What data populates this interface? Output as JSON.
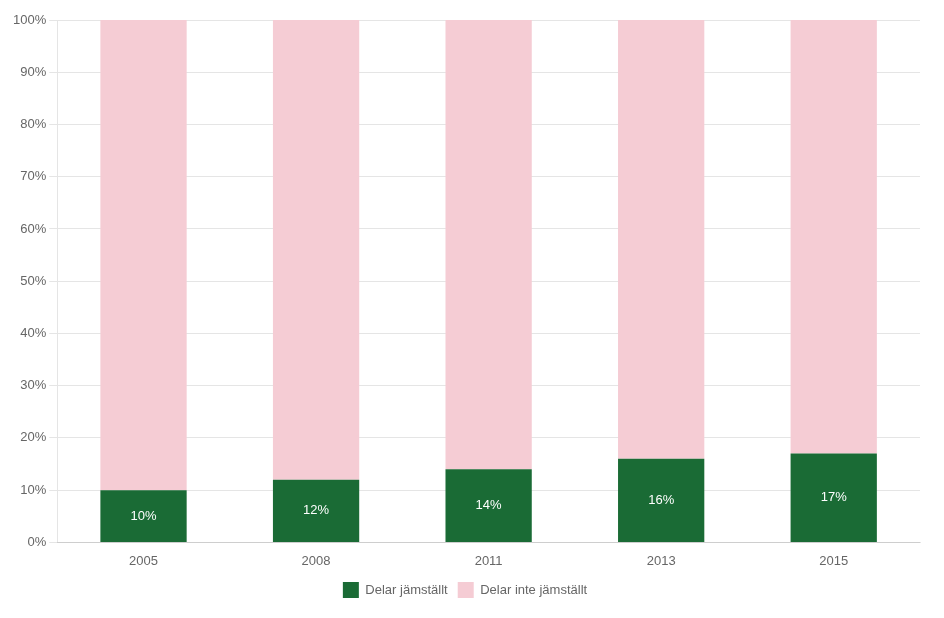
{
  "chart_data": {
    "type": "bar",
    "stacked": true,
    "categories": [
      "2005",
      "2008",
      "2011",
      "2013",
      "2015"
    ],
    "series": [
      {
        "name": "Delar jämställt",
        "color": "#1a6b35",
        "values": [
          10,
          12,
          14,
          16,
          17
        ],
        "value_labels": [
          "10%",
          "12%",
          "14%",
          "16%",
          "17%"
        ]
      },
      {
        "name": "Delar inte jämställt",
        "color": "#f5ccd4",
        "values": [
          90,
          88,
          86,
          84,
          83
        ]
      }
    ],
    "ylim": [
      0,
      100
    ],
    "yticks": [
      {
        "value": 0,
        "label": "0%"
      },
      {
        "value": 10,
        "label": "10%"
      },
      {
        "value": 20,
        "label": "20%"
      },
      {
        "value": 30,
        "label": "30%"
      },
      {
        "value": 40,
        "label": "40%"
      },
      {
        "value": 50,
        "label": "50%"
      },
      {
        "value": 60,
        "label": "60%"
      },
      {
        "value": 70,
        "label": "70%"
      },
      {
        "value": 80,
        "label": "80%"
      },
      {
        "value": 90,
        "label": "90%"
      },
      {
        "value": 100,
        "label": "100%"
      }
    ],
    "grid": true,
    "legend": "bottom"
  }
}
